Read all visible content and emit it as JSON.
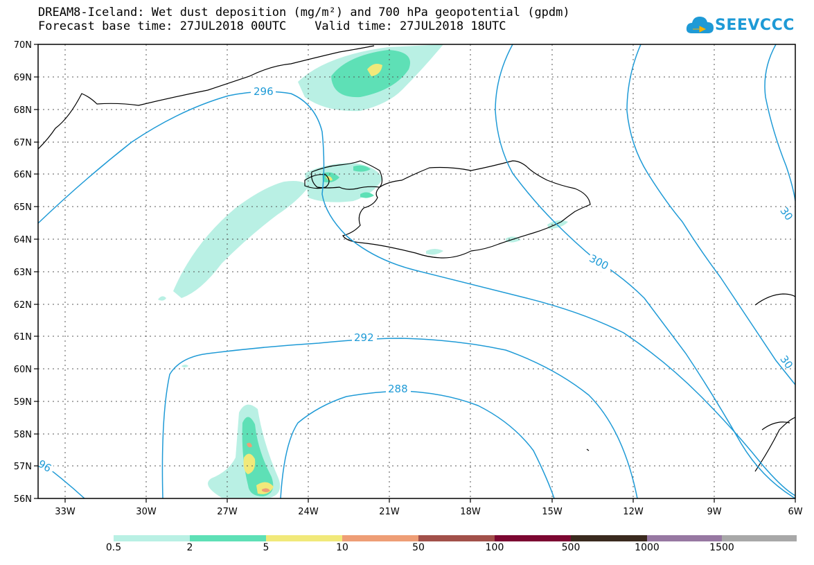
{
  "title": {
    "line1": "DREAM8-Iceland: Wet dust deposition (mg/m²) and 700 hPa geopotential (gpdm)",
    "line2_left": "Forecast base time: 27JUL2018 00UTC",
    "line2_right": "Valid time: 27JUL2018 18UTC"
  },
  "logo": {
    "text": "SEEVCCC",
    "icon": "cloud-logo-icon",
    "color": "#1e9ad6"
  },
  "map": {
    "lon_range": [
      -34,
      -6
    ],
    "lat_range": [
      56,
      70
    ],
    "lon_ticks": [
      "33W",
      "30W",
      "27W",
      "24W",
      "21W",
      "18W",
      "15W",
      "12W",
      "9W",
      "6W"
    ],
    "lat_ticks": [
      "70N",
      "69N",
      "68N",
      "67N",
      "66N",
      "65N",
      "64N",
      "63N",
      "62N",
      "61N",
      "60N",
      "59N",
      "58N",
      "57N",
      "56N"
    ],
    "grid": "dotted",
    "contour_color": "#1e9ad6",
    "contour_labels": [
      "296",
      "300",
      "292",
      "288",
      "96",
      "30",
      "30"
    ]
  },
  "legend": {
    "colors": [
      "#b9f0e4",
      "#5ee0b6",
      "#f1e97a",
      "#ee9e76",
      "#a2504a",
      "#7c0731",
      "#3a2a1e",
      "#9778a2",
      "#a8a8a8"
    ],
    "labels": [
      "0.5",
      "2",
      "5",
      "10",
      "50",
      "100",
      "500",
      "1000",
      "1500"
    ]
  }
}
